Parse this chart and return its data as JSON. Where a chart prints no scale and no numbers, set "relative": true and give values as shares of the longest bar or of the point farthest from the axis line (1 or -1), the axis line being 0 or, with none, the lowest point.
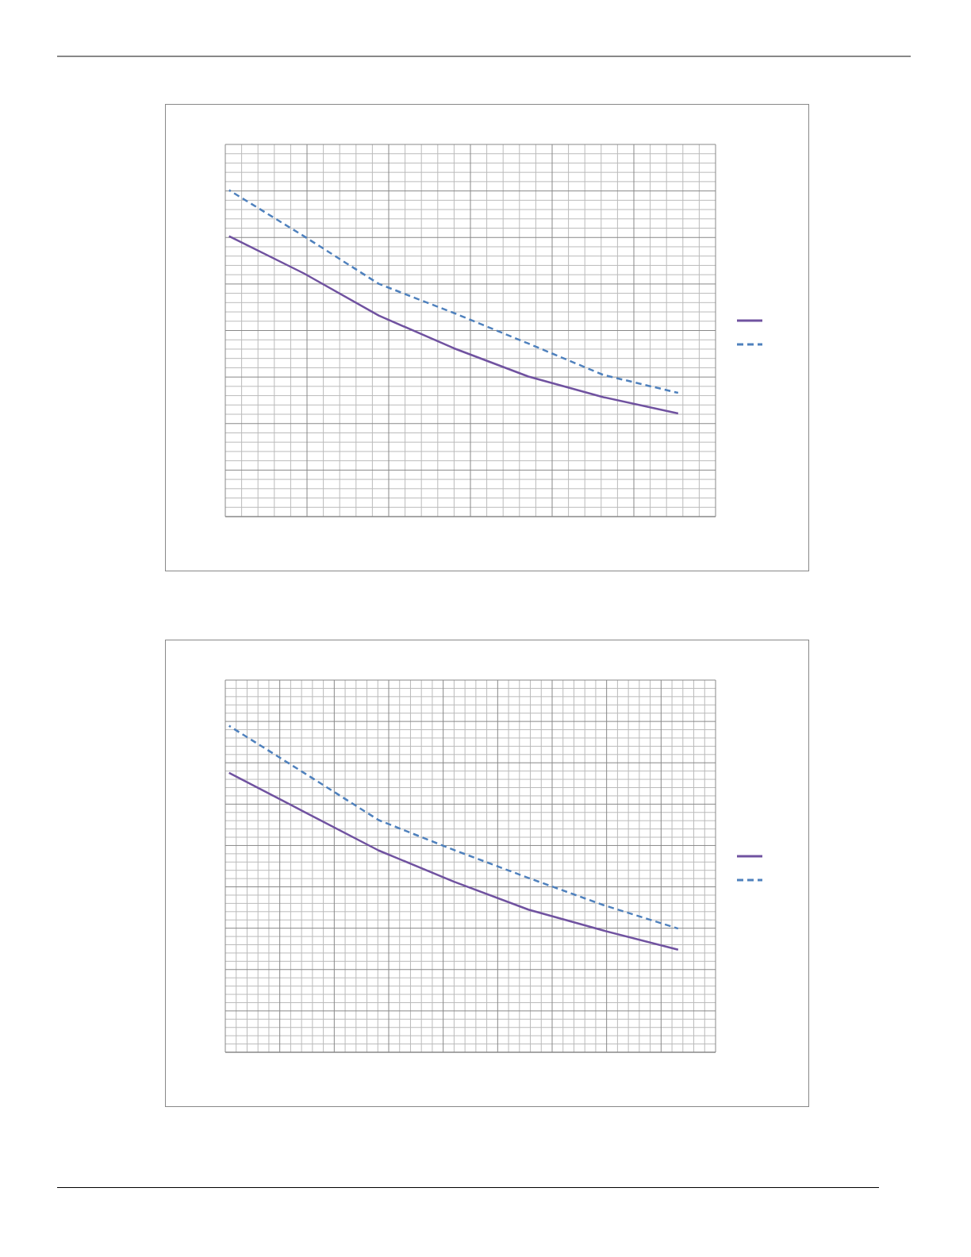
{
  "chart_data": [
    {
      "type": "line",
      "relative": true,
      "categories": [
        null,
        null,
        null,
        null,
        null,
        null,
        null
      ],
      "grid": true,
      "series": [
        {
          "color": "#7052a0",
          "line_style": "solid",
          "values": [
            0.859,
            0.745,
            0.616,
            0.516,
            0.429,
            0.366,
            0.316
          ]
        },
        {
          "color": "#4f81bd",
          "line_style": "dashed",
          "values": [
            1.0,
            0.859,
            0.713,
            0.624,
            0.53,
            0.434,
            0.379
          ]
        }
      ]
    },
    {
      "type": "line",
      "relative": true,
      "categories": [
        null,
        null,
        null,
        null,
        null,
        null,
        null
      ],
      "grid": true,
      "series": [
        {
          "color": "#7052a0",
          "line_style": "solid",
          "values": [
            0.856,
            0.737,
            0.618,
            0.523,
            0.437,
            0.373,
            0.314
          ]
        },
        {
          "color": "#4f81bd",
          "line_style": "dashed",
          "values": [
            1.0,
            0.856,
            0.711,
            0.62,
            0.534,
            0.451,
            0.379
          ]
        }
      ]
    }
  ]
}
